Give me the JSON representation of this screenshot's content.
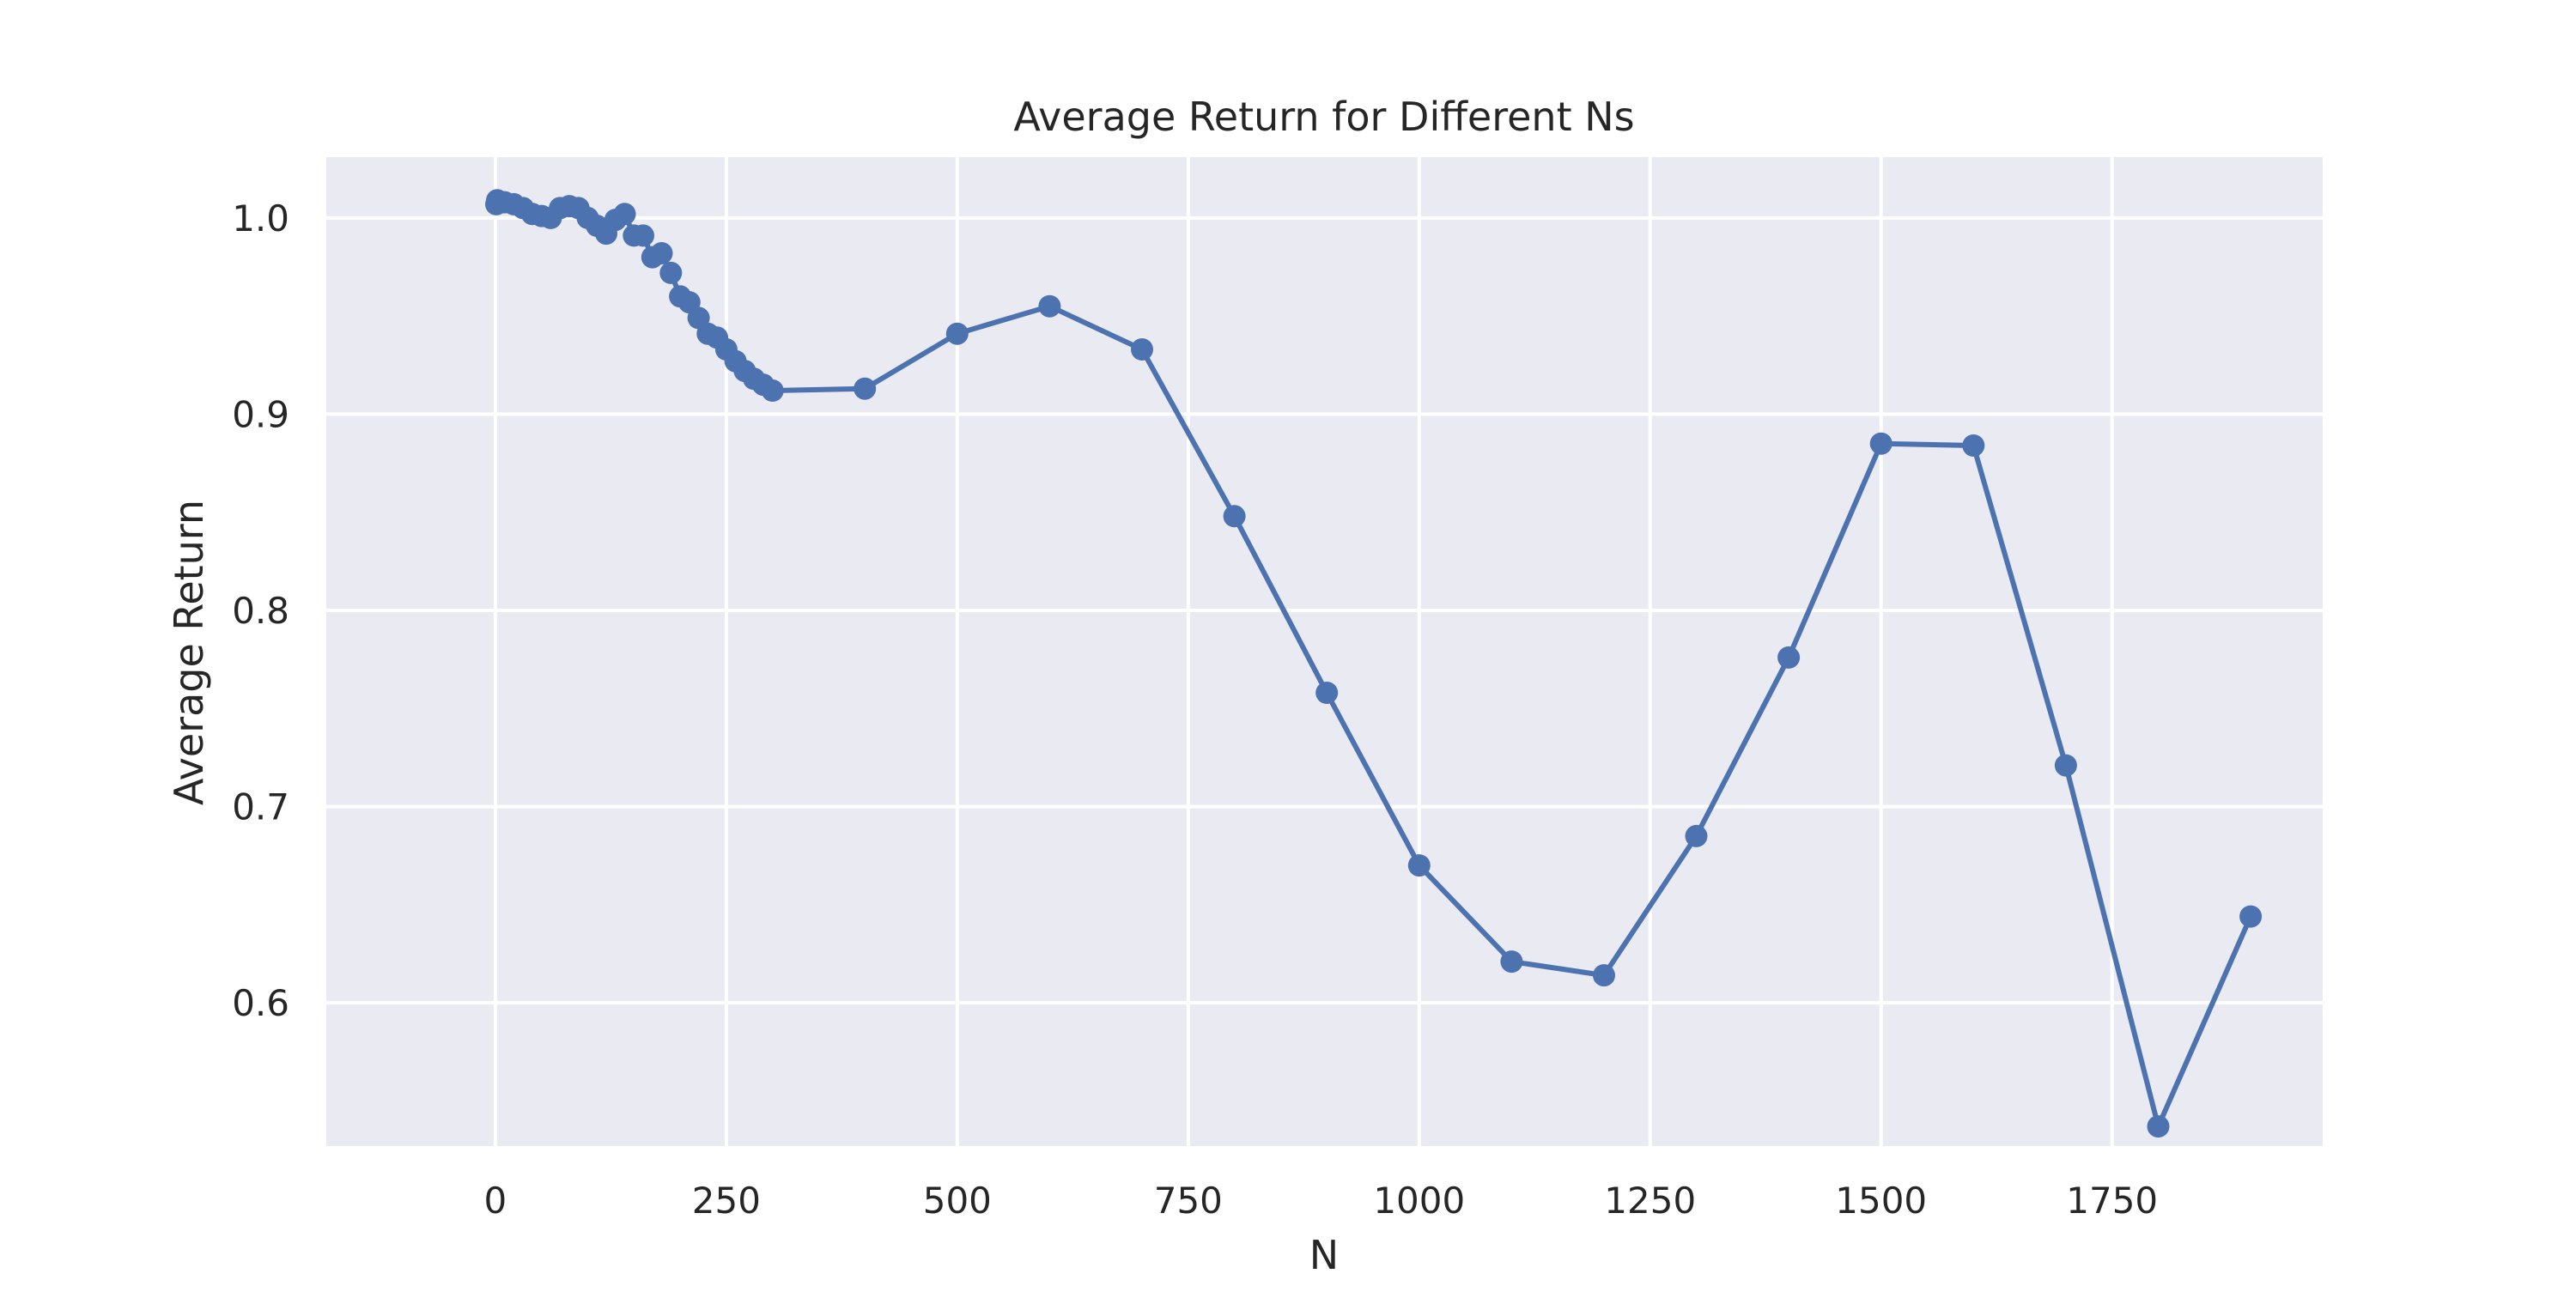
{
  "chart_data": {
    "type": "line",
    "title": "Average Return for Different Ns",
    "xlabel": "N",
    "ylabel": "Average Return",
    "xlim": [
      -183,
      1978
    ],
    "ylim": [
      0.527,
      1.031
    ],
    "xticks": [
      0,
      250,
      500,
      750,
      1000,
      1250,
      1500,
      1750
    ],
    "yticks": [
      0.6,
      0.7,
      0.8,
      0.9,
      1.0
    ],
    "ytick_labels": [
      "0.6",
      "0.7",
      "0.8",
      "0.9",
      "1.0"
    ],
    "grid": true,
    "colors": {
      "background": "#eaeaf2",
      "grid": "#ffffff",
      "line": "#4c72b0"
    },
    "series": [
      {
        "name": "Average Return",
        "marker": "circle",
        "x": [
          1,
          2,
          10,
          20,
          30,
          40,
          50,
          60,
          70,
          80,
          90,
          100,
          110,
          120,
          130,
          140,
          150,
          160,
          170,
          180,
          190,
          200,
          210,
          220,
          230,
          240,
          250,
          260,
          270,
          280,
          290,
          300,
          400,
          500,
          600,
          700,
          800,
          900,
          1000,
          1100,
          1200,
          1300,
          1400,
          1500,
          1600,
          1700,
          1800,
          1900
        ],
        "y": [
          1.007,
          1.009,
          1.008,
          1.007,
          1.005,
          1.002,
          1.001,
          1.0,
          1.005,
          1.006,
          1.005,
          1.0,
          0.996,
          0.992,
          0.999,
          1.002,
          0.991,
          0.991,
          0.98,
          0.982,
          0.972,
          0.96,
          0.957,
          0.949,
          0.941,
          0.939,
          0.933,
          0.927,
          0.922,
          0.918,
          0.915,
          0.912,
          0.913,
          0.941,
          0.955,
          0.933,
          0.848,
          0.758,
          0.67,
          0.621,
          0.614,
          0.685,
          0.776,
          0.885,
          0.884,
          0.721,
          0.537,
          0.644
        ]
      }
    ]
  }
}
